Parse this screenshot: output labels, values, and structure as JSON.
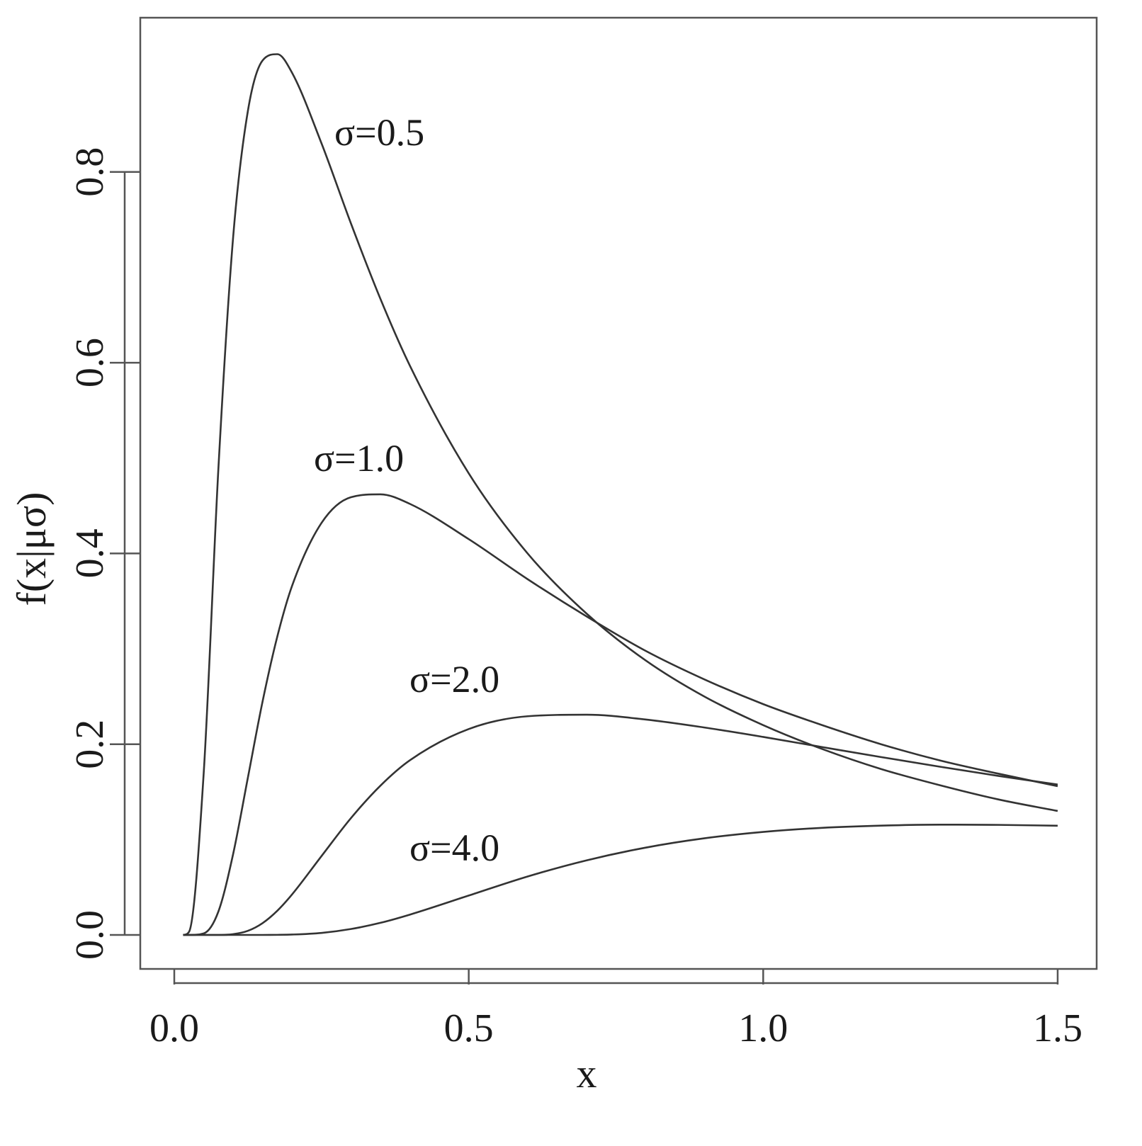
{
  "chart_data": {
    "type": "line",
    "title": "",
    "xlabel": "x",
    "ylabel": "f(x|μσ)",
    "xlim": [
      -0.06,
      1.57
    ],
    "ylim": [
      -0.035,
      0.96
    ],
    "xticks": [
      0.0,
      0.5,
      1.0,
      1.5
    ],
    "xtick_labels": [
      "0.0",
      "0.5",
      "1.0",
      "1.5"
    ],
    "yticks": [
      0.0,
      0.2,
      0.4,
      0.6,
      0.8
    ],
    "ytick_labels": [
      "0.0",
      "0.2",
      "0.4",
      "0.6",
      "0.8"
    ],
    "grid": false,
    "legend": "none",
    "line_color": "#333333",
    "x": [
      0.015,
      0.025,
      0.05,
      0.075,
      0.1,
      0.125,
      0.15,
      0.175,
      0.2,
      0.25,
      0.3,
      0.35,
      0.4,
      0.5,
      0.6,
      0.7,
      0.8,
      0.9,
      1.0,
      1.1,
      1.2,
      1.3,
      1.4,
      1.5
    ],
    "series": [
      {
        "label": "σ=0.5",
        "values": [
          0.0,
          0.0032,
          0.17,
          0.49,
          0.732,
          0.864,
          0.917,
          0.9235,
          0.904,
          0.83,
          0.746,
          0.667,
          0.597,
          0.484,
          0.4,
          0.337,
          0.288,
          0.25,
          0.22,
          0.195,
          0.174,
          0.157,
          0.142,
          0.13
        ]
      },
      {
        "label": "σ=1.0",
        "values": [
          0.0,
          0.0,
          0.0016,
          0.0247,
          0.085,
          0.165,
          0.245,
          0.313,
          0.366,
          0.432,
          0.459,
          0.462,
          0.452,
          0.415,
          0.373,
          0.334,
          0.298,
          0.268,
          0.242,
          0.22,
          0.2,
          0.183,
          0.169,
          0.156
        ]
      },
      {
        "label": "σ=2.0",
        "values": [
          0.0,
          0.0,
          0.0,
          0.0,
          0.0008,
          0.0043,
          0.0124,
          0.0254,
          0.0425,
          0.0827,
          0.1225,
          0.1565,
          0.1831,
          0.2159,
          0.2293,
          0.2309,
          0.2259,
          0.2175,
          0.2076,
          0.197,
          0.1865,
          0.1764,
          0.1667,
          0.1577
        ]
      },
      {
        "label": "σ=4.0",
        "values": [
          0.0,
          0.0,
          0.0,
          0.0,
          0.0,
          0.0,
          0.0,
          0.0001,
          0.0004,
          0.0021,
          0.0062,
          0.0127,
          0.0213,
          0.0413,
          0.0613,
          0.0782,
          0.0915,
          0.1013,
          0.108,
          0.1123,
          0.1146,
          0.1156,
          0.1154,
          0.1145
        ]
      }
    ]
  }
}
